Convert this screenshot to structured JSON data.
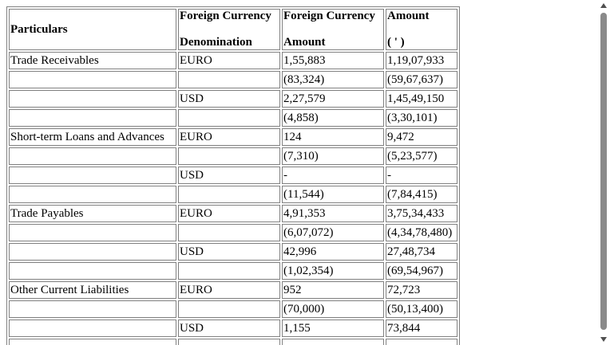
{
  "headers": {
    "particulars": "Particulars",
    "denomination_line1": "Foreign Currency",
    "denomination_line2": "Denomination",
    "fc_amount_line1": "Foreign Currency",
    "fc_amount_line2": "Amount",
    "amount_line1": "Amount",
    "amount_line2": "( ' )"
  },
  "rows": [
    {
      "particulars": "Trade Receivables",
      "currency": "EURO",
      "fc_amount": "1,55,883",
      "amount": "1,19,07,933"
    },
    {
      "particulars": "",
      "currency": "",
      "fc_amount": "(83,324)",
      "amount": "(59,67,637)"
    },
    {
      "particulars": "",
      "currency": "USD",
      "fc_amount": "2,27,579",
      "amount": "1,45,49,150"
    },
    {
      "particulars": "",
      "currency": "",
      "fc_amount": "(4,858)",
      "amount": "(3,30,101)"
    },
    {
      "particulars": "Short-term Loans and Advances",
      "currency": "EURO",
      "fc_amount": "124",
      "amount": "9,472"
    },
    {
      "particulars": "",
      "currency": "",
      "fc_amount": "(7,310)",
      "amount": "(5,23,577)"
    },
    {
      "particulars": "",
      "currency": "USD",
      "fc_amount": "-",
      "amount": "-"
    },
    {
      "particulars": "",
      "currency": "",
      "fc_amount": "(11,544)",
      "amount": "(7,84,415)"
    },
    {
      "particulars": "Trade Payables",
      "currency": "EURO",
      "fc_amount": "4,91,353",
      "amount": "3,75,34,433"
    },
    {
      "particulars": "",
      "currency": "",
      "fc_amount": "(6,07,072)",
      "amount": "(4,34,78,480)"
    },
    {
      "particulars": "",
      "currency": "USD",
      "fc_amount": "42,996",
      "amount": "27,48,734"
    },
    {
      "particulars": "",
      "currency": "",
      "fc_amount": "(1,02,354)",
      "amount": "(69,54,967)"
    },
    {
      "particulars": "Other Current Liabilities",
      "currency": "EURO",
      "fc_amount": "952",
      "amount": "72,723"
    },
    {
      "particulars": "",
      "currency": "",
      "fc_amount": "(70,000)",
      "amount": "(50,13,400)"
    },
    {
      "particulars": "",
      "currency": "USD",
      "fc_amount": "1,155",
      "amount": "73,844"
    },
    {
      "particulars": "",
      "currency": "",
      "fc_amount": "",
      "amount": ""
    }
  ]
}
